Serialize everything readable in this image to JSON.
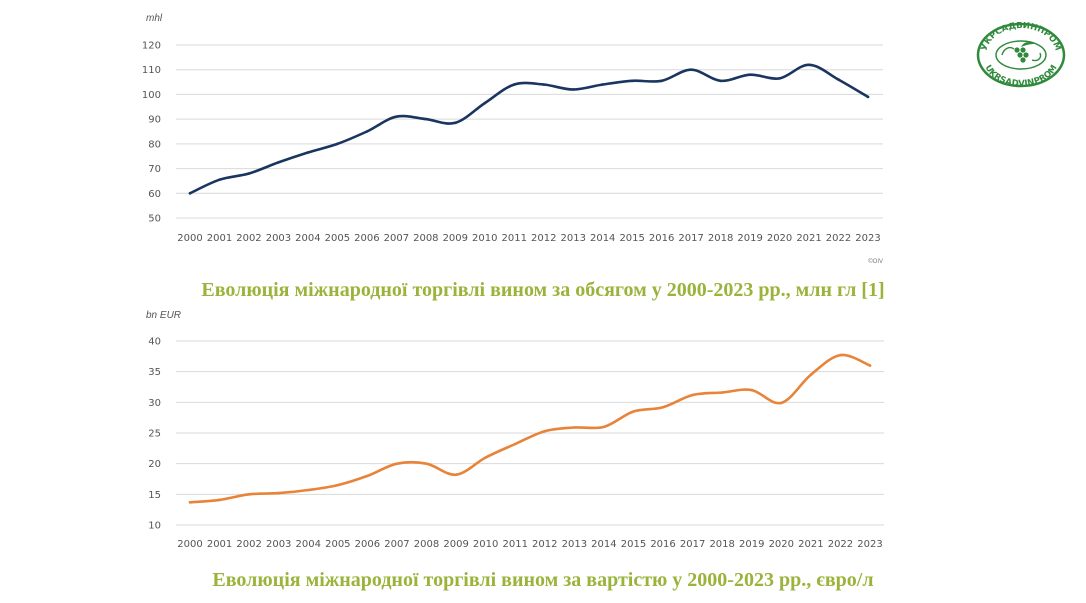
{
  "chart_data": [
    {
      "type": "line",
      "title": "",
      "unit_label": "mhl",
      "credit": "©OIV",
      "x": [
        "2000",
        "2001",
        "2002",
        "2003",
        "2004",
        "2005",
        "2006",
        "2007",
        "2008",
        "2009",
        "2010",
        "2011",
        "2012",
        "2013",
        "2014",
        "2015",
        "2016",
        "2017",
        "2018",
        "2019",
        "2020",
        "2021",
        "2022",
        "2023"
      ],
      "series": [
        {
          "values": [
            60,
            65.5,
            68,
            72.5,
            76.5,
            80,
            85,
            91,
            90,
            88.5,
            96.5,
            104,
            104,
            102,
            104,
            105.5,
            105.5,
            110,
            105.5,
            108,
            106.5,
            112,
            106,
            99
          ]
        }
      ],
      "yticks": [
        50,
        60,
        70,
        80,
        90,
        100,
        110,
        120
      ],
      "ylim": [
        50,
        120
      ],
      "grid": true,
      "color": "#1a3560"
    },
    {
      "type": "line",
      "title": "",
      "unit_label": "bn EUR",
      "x": [
        "2000",
        "2001",
        "2002",
        "2003",
        "2004",
        "2005",
        "2006",
        "2007",
        "2008",
        "2009",
        "2010",
        "2011",
        "2012",
        "2013",
        "2014",
        "2015",
        "2016",
        "2017",
        "2018",
        "2019",
        "2020",
        "2021",
        "2022",
        "2023"
      ],
      "series": [
        {
          "values": [
            13.7,
            14.1,
            15,
            15.2,
            15.7,
            16.5,
            18,
            20,
            20,
            18.2,
            21,
            23.2,
            25.3,
            25.9,
            26,
            28.5,
            29.2,
            31.2,
            31.6,
            32,
            29.9,
            34.5,
            37.7,
            36
          ]
        }
      ],
      "yticks": [
        10,
        15,
        20,
        25,
        30,
        35,
        40
      ],
      "ylim": [
        10,
        40
      ],
      "grid": true,
      "color": "#e8833a"
    }
  ],
  "captions": {
    "volume": "Еволюція міжнародної торгівлі вином за обсягом у 2000-2023  рр., млн гл [1]",
    "value": "Еволюція міжнародної торгівлі вином за вартістю у 2000-2023  рр., євро/л"
  },
  "logo": {
    "top_text": "УКРСАДВИНПРОМ",
    "bottom_text": "UKRSADVINPROM",
    "color": "#2f8a3c"
  }
}
